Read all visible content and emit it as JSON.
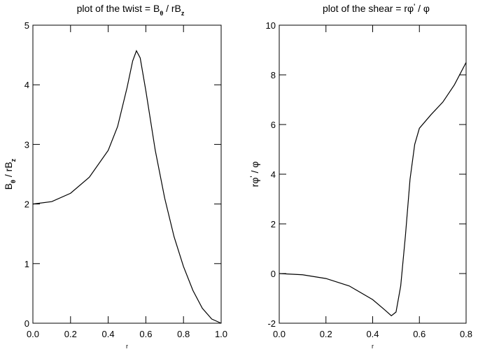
{
  "chart_data": [
    {
      "type": "line",
      "title": [
        "plot of the twist = B",
        "θ",
        "  / rB",
        "z"
      ],
      "y_label": [
        "B",
        "θ",
        "  / rB",
        "z"
      ],
      "x_label": "r",
      "xlim": [
        0,
        1
      ],
      "ylim": [
        0,
        5
      ],
      "xticks": [
        {
          "value": 0,
          "label": "0.0"
        },
        0.2,
        0.4,
        0.6,
        0.8,
        {
          "value": 1,
          "label": "1.0"
        }
      ],
      "yticks": [
        0,
        1,
        2,
        3,
        4,
        5
      ],
      "x": [
        0,
        0.1,
        0.2,
        0.3,
        0.4,
        0.45,
        0.5,
        0.53,
        0.55,
        0.57,
        0.6,
        0.65,
        0.7,
        0.75,
        0.8,
        0.85,
        0.9,
        0.95,
        1.0
      ],
      "values": [
        2.0,
        2.04,
        2.18,
        2.45,
        2.9,
        3.3,
        3.95,
        4.4,
        4.57,
        4.45,
        3.9,
        2.9,
        2.1,
        1.45,
        0.95,
        0.55,
        0.25,
        0.07,
        0
      ],
      "color": "#000000"
    },
    {
      "type": "line",
      "title": [
        "plot of the shear =  rφ",
        "'",
        "  / φ"
      ],
      "y_label": [
        "rφ",
        "'",
        "  / φ"
      ],
      "x_label": "r",
      "xlim": [
        0,
        0.8
      ],
      "ylim": [
        -2,
        10
      ],
      "xticks": [
        {
          "value": 0,
          "label": "0.0"
        },
        0.2,
        0.4,
        0.6,
        0.8
      ],
      "yticks": [
        -2,
        0,
        2,
        4,
        6,
        8,
        10
      ],
      "x": [
        0,
        0.1,
        0.2,
        0.3,
        0.4,
        0.45,
        0.48,
        0.5,
        0.52,
        0.54,
        0.56,
        0.58,
        0.6,
        0.65,
        0.7,
        0.75,
        0.8
      ],
      "values": [
        0,
        -0.05,
        -0.2,
        -0.5,
        -1.05,
        -1.45,
        -1.7,
        -1.55,
        -0.5,
        1.5,
        3.8,
        5.2,
        5.85,
        6.4,
        6.9,
        7.6,
        8.5
      ],
      "color": "#000000"
    }
  ]
}
